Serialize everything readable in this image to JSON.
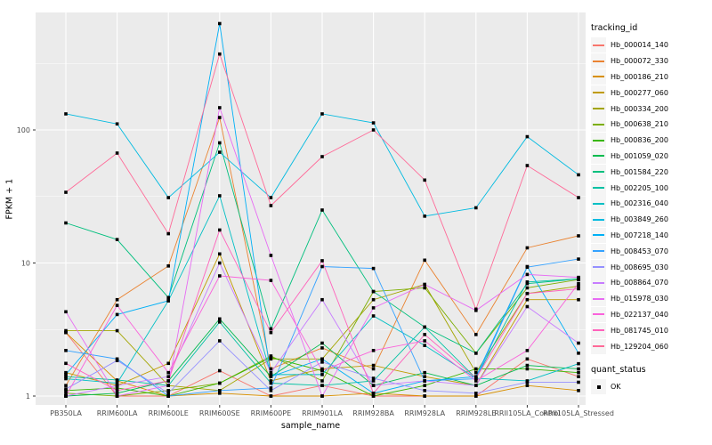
{
  "chart_data": {
    "type": "line",
    "title": "",
    "xlabel": "sample_name",
    "ylabel": "FPKM + 1",
    "yscale": "log10",
    "yticks": [
      1,
      10,
      100
    ],
    "ylim": [
      0.86,
      760
    ],
    "grid": true,
    "legend_position": "right",
    "point_shape": "filled-square",
    "point_color": "#000000",
    "categories": [
      "PB350LA",
      "RRIM600LA",
      "RRIM600LE",
      "RRIM600SE",
      "RRIM600PE",
      "RRIM901LA",
      "RRIM928BA",
      "RRIM928LA",
      "RRIM928LE",
      "RRII105LA_Control",
      "RRII105LA_Stressed"
    ],
    "series": [
      {
        "name": "Hb_000014_140",
        "color": "#F8766D",
        "values": [
          3.0,
          1.0,
          1.0,
          1.55,
          1.0,
          1.2,
          1.0,
          1.0,
          1.0,
          1.9,
          1.4
        ]
      },
      {
        "name": "Hb_000072_330",
        "color": "#EA8331",
        "values": [
          1.2,
          5.3,
          9.5,
          124,
          1.6,
          2.3,
          1.6,
          10.5,
          2.9,
          13,
          16
        ]
      },
      {
        "name": "Hb_000186_210",
        "color": "#D89000",
        "values": [
          3.0,
          1.3,
          1.0,
          1.05,
          1.0,
          1.0,
          1.05,
          1.0,
          1.0,
          1.2,
          1.1
        ]
      },
      {
        "name": "Hb_000277_060",
        "color": "#C09B00",
        "values": [
          1.5,
          1.2,
          1.76,
          11.7,
          1.3,
          1.6,
          1.7,
          1.4,
          1.2,
          5.3,
          5.3
        ]
      },
      {
        "name": "Hb_000334_200",
        "color": "#A3A500",
        "values": [
          3.1,
          3.1,
          1.2,
          1.1,
          1.9,
          1.9,
          5.3,
          6.9,
          1.5,
          5.9,
          6.7
        ]
      },
      {
        "name": "Hb_000638_210",
        "color": "#7CAE00",
        "values": [
          1.05,
          1.0,
          1.1,
          1.25,
          2.0,
          1.3,
          6.1,
          6.5,
          2.1,
          6.5,
          7.5
        ]
      },
      {
        "name": "Hb_000836_200",
        "color": "#39B600",
        "values": [
          1.1,
          1.15,
          1.0,
          1.25,
          1.95,
          1.55,
          1.0,
          1.2,
          1.6,
          1.6,
          1.5
        ]
      },
      {
        "name": "Hb_001059_020",
        "color": "#00BB4E",
        "values": [
          1.0,
          1.05,
          1.3,
          3.8,
          1.4,
          2.5,
          1.2,
          1.5,
          1.2,
          1.7,
          1.6
        ]
      },
      {
        "name": "Hb_001584_220",
        "color": "#00BF7D",
        "values": [
          20,
          15,
          5.5,
          80,
          3.2,
          25,
          6.1,
          3.3,
          2.1,
          7.0,
          7.6
        ]
      },
      {
        "name": "Hb_002205_100",
        "color": "#00C1A3",
        "values": [
          1.4,
          1.32,
          1.2,
          3.6,
          1.25,
          1.2,
          1.3,
          3.3,
          1.36,
          7.2,
          7.6
        ]
      },
      {
        "name": "Hb_002316_040",
        "color": "#00BFC4",
        "values": [
          1.35,
          1.25,
          5.2,
          32,
          1.45,
          1.45,
          4.0,
          2.4,
          1.36,
          1.3,
          1.75
        ]
      },
      {
        "name": "Hb_003849_260",
        "color": "#00BAE0",
        "values": [
          132,
          111,
          31,
          68,
          31,
          132,
          113,
          22.5,
          26,
          89,
          46
        ]
      },
      {
        "name": "Hb_007218_140",
        "color": "#00B0F6",
        "values": [
          1.45,
          4.1,
          5.2,
          630,
          1.4,
          1.9,
          1.05,
          1.3,
          1.4,
          9.4,
          2.1
        ]
      },
      {
        "name": "Hb_008453_070",
        "color": "#35A2FF",
        "values": [
          2.2,
          1.9,
          1.0,
          1.1,
          1.15,
          9.4,
          9.1,
          1.3,
          1.35,
          9.3,
          10.7
        ]
      },
      {
        "name": "Hb_008695_030",
        "color": "#9590FF",
        "values": [
          1.13,
          1.85,
          1.05,
          2.6,
          1.1,
          1.8,
          1.36,
          1.1,
          1.05,
          1.27,
          1.27
        ]
      },
      {
        "name": "Hb_008864_070",
        "color": "#C77CFF",
        "values": [
          1.0,
          1.2,
          1.4,
          10,
          1.5,
          5.3,
          1.2,
          1.3,
          1.2,
          4.7,
          2.5
        ]
      },
      {
        "name": "Hb_015978_030",
        "color": "#E76BF3",
        "values": [
          4.3,
          1.0,
          1.2,
          147,
          11.4,
          1.0,
          4.6,
          6.9,
          4.4,
          8.2,
          7.8
        ]
      },
      {
        "name": "Hb_022137_040",
        "color": "#FA62DB",
        "values": [
          1.0,
          4.8,
          1.5,
          8.0,
          7.4,
          1.55,
          2.2,
          2.6,
          1.3,
          2.2,
          7.0
        ]
      },
      {
        "name": "Hb_081745_010",
        "color": "#FF62BC",
        "values": [
          1.76,
          1.1,
          1.3,
          17.7,
          3.0,
          10.4,
          1.05,
          2.9,
          1.36,
          5.9,
          6.4
        ]
      },
      {
        "name": "Hb_129204_060",
        "color": "#FF6A98",
        "values": [
          34,
          67,
          16.6,
          372,
          27,
          63,
          100,
          42,
          4.5,
          54,
          31
        ]
      }
    ]
  },
  "legend": {
    "tracking_title": "tracking_id",
    "quant_title": "quant_status",
    "quant_items": [
      {
        "label": "OK",
        "color": "#000000"
      }
    ]
  },
  "colors": {
    "panel_bg": "#EBEBEB",
    "grid": "#FFFFFF",
    "tick_text": "#4D4D4D",
    "tick_mark": "#333333",
    "legend_key_bg": "#F5F5F5"
  }
}
